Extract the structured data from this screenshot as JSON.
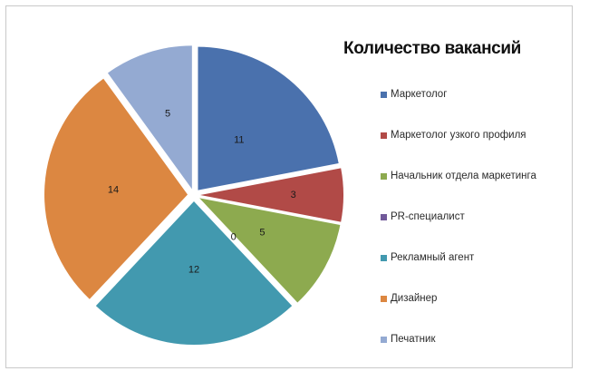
{
  "chart_data": {
    "type": "pie",
    "title": "Количество вакансий",
    "categories": [
      "Маркетолог",
      "Маркетолог узкого профиля",
      "Начальник отдела маркетинга",
      "PR-специалист",
      "Рекламный агент",
      "Дизайнер",
      "Печатник"
    ],
    "values": [
      11,
      3,
      5,
      0,
      12,
      14,
      5
    ],
    "data_labels": [
      "11",
      "3",
      "5",
      "0",
      "12",
      "14",
      "5"
    ],
    "colors": [
      "#4A71AD",
      "#B14A47",
      "#8DAA4F",
      "#71599A",
      "#4299AF",
      "#DC8741",
      "#94AAD2"
    ],
    "legend_position": "right",
    "exploded": true
  },
  "icons": {
    "legend_marker": "square-swatch"
  }
}
